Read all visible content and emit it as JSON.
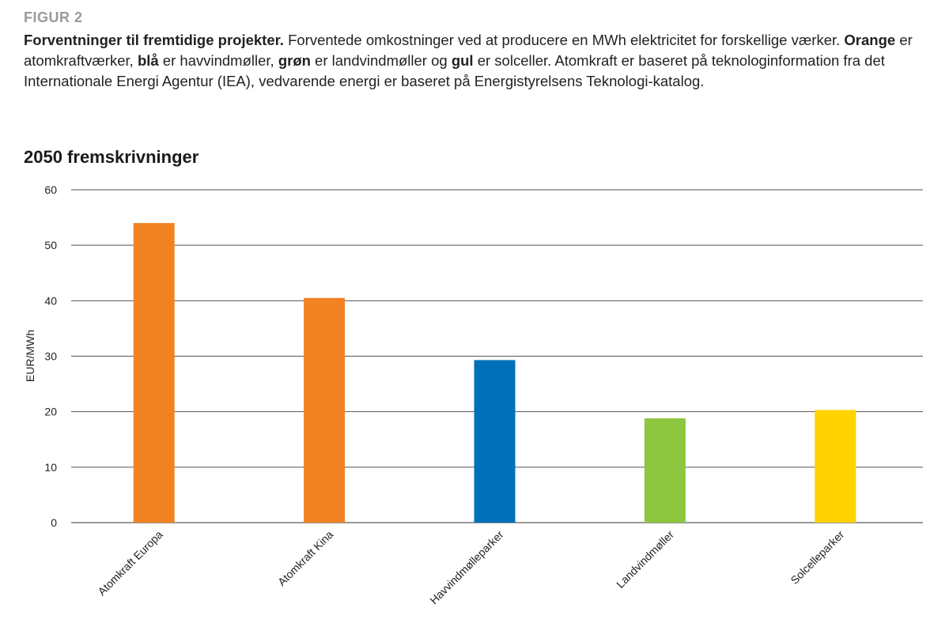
{
  "figure": {
    "label": "FIGUR 2",
    "caption": {
      "bold_title": "Forventninger til fremtidige projekter.",
      "text_1": " Forventede omkostninger ved at producere en MWh elektricitet for forskellige værker. ",
      "orange_word": "Orange",
      "text_2": " er atomkraftværker, ",
      "blue_word": "blå",
      "text_3": " er havvindmøller, ",
      "green_word": "grøn",
      "text_4": " er landvindmøller og ",
      "yellow_word": "gul",
      "text_5": " er solceller. Atomkraft er baseret på teknologinformation fra det Internationale Energi Agentur (IEA), vedvarende energi er baseret på Energistyrelsens Teknologi-katalog."
    }
  },
  "chart_data": {
    "type": "bar",
    "title": "2050 fremskrivninger",
    "xlabel": "",
    "ylabel": "EUR/MWh",
    "ylim": [
      0,
      60
    ],
    "yticks": [
      0,
      10,
      20,
      30,
      40,
      50,
      60
    ],
    "grid": true,
    "categories": [
      "Atomkraft Europa",
      "Atomkraft Kina",
      "Havvindmølleparker",
      "Landvindmøller",
      "Solcelleparker"
    ],
    "values": [
      54,
      40.5,
      29.3,
      18.8,
      20.3
    ],
    "colors": [
      "#F28322",
      "#F28322",
      "#0070BA",
      "#8DC63F",
      "#FFD200"
    ]
  }
}
